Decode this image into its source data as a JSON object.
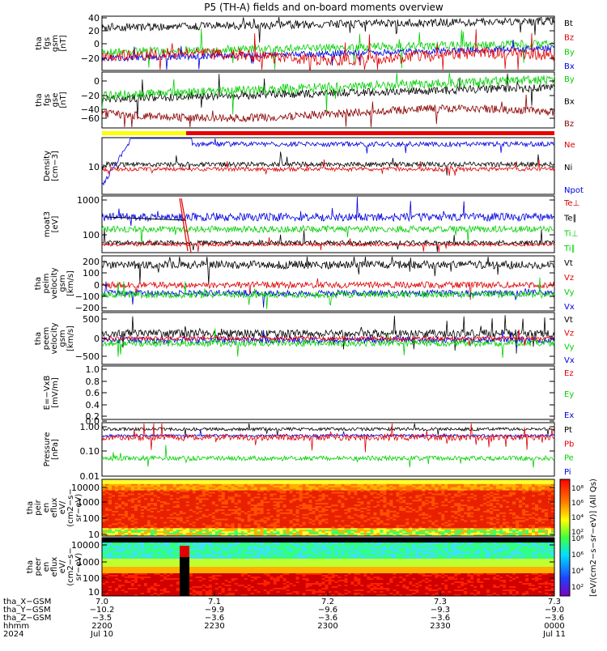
{
  "title": "P5 (TH-A) fields and on-board moments overview",
  "colors": {
    "black": "#000000",
    "red": "#e00000",
    "green": "#00d000",
    "blue": "#0000e0",
    "darkred": "#8b0000",
    "yellow": "#ffff00",
    "barred": "#e80000"
  },
  "panels": [
    {
      "id": "fgs_gsm",
      "ylabel": [
        "tha",
        "fgs",
        "gsm",
        "[nT]"
      ],
      "ticks": [
        "40",
        "20",
        "0",
        "−20"
      ],
      "legend": [
        {
          "t": "Bt",
          "c": "black"
        },
        {
          "t": "Bz",
          "c": "red"
        },
        {
          "t": "By",
          "c": "green"
        },
        {
          "t": "Bx",
          "c": "blue"
        }
      ]
    },
    {
      "id": "fgs_gse",
      "ylabel": [
        "tha",
        "fgs",
        "gse",
        "[nT]"
      ],
      "ticks": [
        "0",
        "−20",
        "−40",
        "−60"
      ],
      "legend": [
        {
          "t": "By",
          "c": "green"
        },
        {
          "t": "Bx",
          "c": "black"
        },
        {
          "t": "Bz",
          "c": "darkred"
        }
      ]
    },
    {
      "id": "density",
      "ylabel": [
        "Density",
        "[cm−3]"
      ],
      "ticks": [
        "10"
      ],
      "legend": [
        {
          "t": "Ne",
          "c": "red"
        },
        {
          "t": "Ni",
          "c": "black"
        },
        {
          "t": "Npot",
          "c": "blue"
        }
      ]
    },
    {
      "id": "temp",
      "ylabel": [
        "moat3",
        "[eV]"
      ],
      "ticks": [
        "1000",
        "100"
      ],
      "legend": [
        {
          "t": "Te⊥",
          "c": "red"
        },
        {
          "t": "Te∥",
          "c": "black"
        },
        {
          "t": "Ti⊥",
          "c": "green"
        },
        {
          "t": "Ti∥",
          "c": "green"
        }
      ]
    },
    {
      "id": "peim",
      "ylabel": [
        "tha",
        "peim",
        "velocity",
        "gsm",
        "[km/s]"
      ],
      "ticks": [
        "200",
        "100",
        "0",
        "−100",
        "−200"
      ],
      "legend": [
        {
          "t": "Vt",
          "c": "black"
        },
        {
          "t": "Vz",
          "c": "red"
        },
        {
          "t": "Vy",
          "c": "green"
        },
        {
          "t": "Vx",
          "c": "blue"
        }
      ]
    },
    {
      "id": "peem",
      "ylabel": [
        "tha",
        "peem",
        "velocity",
        "gsm",
        "[km/s]"
      ],
      "ticks": [
        "500",
        "0",
        "−500"
      ],
      "legend": [
        {
          "t": "Vt",
          "c": "black"
        },
        {
          "t": "Vz",
          "c": "red"
        },
        {
          "t": "Vy",
          "c": "green"
        },
        {
          "t": "Vx",
          "c": "blue"
        }
      ]
    },
    {
      "id": "efield",
      "ylabel": [
        "E=−VxB",
        "[mV/m]"
      ],
      "ticks": [
        "1.0",
        "0.8",
        "0.6",
        "0.4",
        "0.2",
        "0.0"
      ],
      "legend": [
        {
          "t": "Ez",
          "c": "red"
        },
        {
          "t": "Ey",
          "c": "green"
        },
        {
          "t": "Ex",
          "c": "blue"
        }
      ]
    },
    {
      "id": "pressure",
      "ylabel": [
        "Pressure",
        "[nPa]"
      ],
      "ticks": [
        "1.00",
        "0.10",
        "0.01"
      ],
      "legend": [
        {
          "t": "Pt",
          "c": "black"
        },
        {
          "t": "Pb",
          "c": "red"
        },
        {
          "t": "Pe",
          "c": "green"
        },
        {
          "t": "Pi",
          "c": "blue"
        }
      ]
    },
    {
      "id": "peir",
      "ylabel": [
        "tha",
        "peir",
        "en",
        "eflux",
        "eV/",
        "(cm2−s−",
        "sr−eV)"
      ],
      "ticks": [
        "10000",
        "1000",
        "100",
        "10"
      ],
      "legend": []
    },
    {
      "id": "peer",
      "ylabel": [
        "tha",
        "peer",
        "en",
        "eflux",
        "eV/",
        "(cm2−s−",
        "sr−eV)"
      ],
      "ticks": [
        "10000",
        "1000",
        "100",
        "10"
      ],
      "legend": []
    }
  ],
  "colorbar": {
    "label": "[eV/(cm2−s−sr−eV)] (All Qs)",
    "ticks_top": [
      "10⁸",
      "10⁶",
      "10⁴",
      "10²"
    ],
    "ticks_bottom": [
      "10⁸",
      "10⁶",
      "10⁴",
      "10²"
    ]
  },
  "xaxis": {
    "rows": [
      {
        "label": "tha_X−GSM",
        "values": [
          "7.0",
          "7.1",
          "7.2",
          "7.3",
          "7.3"
        ]
      },
      {
        "label": "tha_Y−GSM",
        "values": [
          "−10.2",
          "−9.9",
          "−9.6",
          "−9.3",
          "−9.0"
        ]
      },
      {
        "label": "tha_Z−GSM",
        "values": [
          "−3.5",
          "−3.6",
          "−3.6",
          "−3.6",
          "−3.6"
        ]
      },
      {
        "label": "hhmm",
        "values": [
          "2200",
          "2230",
          "2300",
          "2330",
          "0000"
        ]
      },
      {
        "label": "2024",
        "values": [
          "Jul 10",
          "",
          "",
          "",
          "Jul 11"
        ]
      }
    ]
  },
  "chart_data": [
    {
      "type": "line",
      "title": "P5 (TH-A) fields and on-board moments overview",
      "ylabel": "tha fgs gsm [nT]",
      "ylim": [
        -35,
        42
      ],
      "x": [
        "2200",
        "2230",
        "2300",
        "2330",
        "0000"
      ],
      "series": [
        {
          "name": "Bt",
          "values": [
            30,
            32,
            38,
            36,
            34
          ]
        },
        {
          "name": "Bz",
          "values": [
            -15,
            -20,
            -18,
            -20,
            -15
          ]
        },
        {
          "name": "By",
          "values": [
            -15,
            0,
            5,
            0,
            5
          ]
        },
        {
          "name": "Bx",
          "values": [
            -20,
            -5,
            0,
            -5,
            0
          ]
        }
      ]
    },
    {
      "type": "line",
      "ylabel": "tha fgs gse [nT]",
      "ylim": [
        -80,
        5
      ],
      "x": [
        "2200",
        "2230",
        "2300",
        "2330",
        "0000"
      ],
      "series": [
        {
          "name": "By",
          "values": [
            -30,
            -20,
            -15,
            -10,
            -12
          ]
        },
        {
          "name": "Bx",
          "values": [
            -40,
            -30,
            -25,
            -25,
            -22
          ]
        },
        {
          "name": "Bz",
          "values": [
            -65,
            -60,
            -65,
            -70,
            -68
          ]
        }
      ]
    },
    {
      "type": "line",
      "ylabel": "Density [cm−3]",
      "scale": "log",
      "x": [
        "2200",
        "2230",
        "2300",
        "2330",
        "0000"
      ],
      "series": [
        {
          "name": "Ne",
          "values": [
            8,
            7,
            8,
            8,
            8
          ]
        },
        {
          "name": "Ni",
          "values": [
            10,
            10,
            11,
            10,
            10
          ]
        },
        {
          "name": "Npot",
          "values": [
            4,
            25,
            30,
            27,
            28
          ]
        }
      ]
    },
    {
      "type": "line",
      "ylabel": "moat3 [eV]",
      "scale": "log",
      "x": [
        "2200",
        "2230",
        "2300",
        "2330",
        "0000"
      ],
      "series": [
        {
          "name": "Te⊥",
          "values": [
            50,
            50,
            50,
            55,
            55
          ]
        },
        {
          "name": "Te∥",
          "values": [
            40,
            45,
            50,
            50,
            50
          ]
        },
        {
          "name": "Ti⊥",
          "values": [
            150,
            120,
            130,
            120,
            110
          ]
        },
        {
          "name": "Ti∥",
          "values": [
            250,
            280,
            270,
            250,
            230
          ]
        }
      ]
    },
    {
      "type": "line",
      "ylabel": "tha peim velocity gsm [km/s]",
      "ylim": [
        -220,
        260
      ],
      "x": [
        "2200",
        "2230",
        "2300",
        "2330",
        "0000"
      ],
      "series": [
        {
          "name": "Vt",
          "values": [
            130,
            160,
            150,
            140,
            120
          ]
        },
        {
          "name": "Vz",
          "values": [
            0,
            10,
            0,
            5,
            -20
          ]
        },
        {
          "name": "Vy",
          "values": [
            -80,
            -100,
            -60,
            -80,
            -80
          ]
        },
        {
          "name": "Vx",
          "values": [
            -100,
            -120,
            -100,
            -90,
            -100
          ]
        }
      ]
    },
    {
      "type": "line",
      "ylabel": "tha peem velocity gsm [km/s]",
      "ylim": [
        -600,
        800
      ],
      "x": [
        "2200",
        "2230",
        "2300",
        "2330",
        "0000"
      ],
      "series": [
        {
          "name": "Vt",
          "values": [
            100,
            120,
            80,
            60,
            60
          ]
        },
        {
          "name": "Vz",
          "values": [
            0,
            0,
            0,
            0,
            0
          ]
        },
        {
          "name": "Vy",
          "values": [
            -50,
            -50,
            -40,
            -40,
            -40
          ]
        },
        {
          "name": "Vx",
          "values": [
            -20,
            -20,
            -20,
            -20,
            -20
          ]
        }
      ]
    },
    {
      "type": "line",
      "ylabel": "E=−VxB [mV/m]",
      "ylim": [
        0,
        1
      ],
      "x": [
        "2200",
        "2230",
        "2300",
        "2330",
        "0000"
      ],
      "series": []
    },
    {
      "type": "line",
      "ylabel": "Pressure [nPa]",
      "scale": "log",
      "x": [
        "2200",
        "2230",
        "2300",
        "2330",
        "0000"
      ],
      "series": [
        {
          "name": "Pt",
          "values": [
            0.6,
            0.65,
            0.6,
            0.62,
            0.6
          ]
        },
        {
          "name": "Pb",
          "values": [
            0.35,
            0.3,
            0.35,
            0.3,
            0.3
          ]
        },
        {
          "name": "Pe",
          "values": [
            0.07,
            0.08,
            0.07,
            0.06,
            0.06
          ]
        },
        {
          "name": "Pi",
          "values": [
            0.3,
            0.35,
            0.35,
            0.35,
            0.35
          ]
        }
      ]
    },
    {
      "type": "heatmap",
      "ylabel": "tha peir en eflux eV/(cm2−s−sr−eV)",
      "scale": "log"
    },
    {
      "type": "heatmap",
      "ylabel": "tha peer en eflux eV/(cm2−s−sr−eV)",
      "scale": "log"
    }
  ]
}
